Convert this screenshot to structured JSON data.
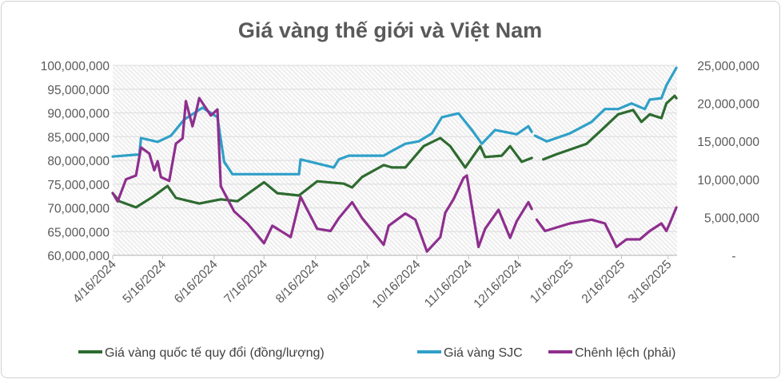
{
  "chart_data": {
    "type": "line",
    "title": "Giá vàng thế giới và Việt Nam",
    "y_left": {
      "ticks": [
        "60,000,000",
        "65,000,000",
        "70,000,000",
        "75,000,000",
        "80,000,000",
        "85,000,000",
        "90,000,000",
        "95,000,000",
        "100,000,000"
      ],
      "range": [
        60000000,
        100000000
      ]
    },
    "y_right": {
      "ticks": [
        "-",
        "5,000,000",
        "10,000,000",
        "15,000,000",
        "20,000,000",
        "25,000,000"
      ],
      "range": [
        0,
        25000000
      ]
    },
    "x_ticks": [
      {
        "date": "2024-04-16",
        "label": "4/16/2024"
      },
      {
        "date": "2024-05-16",
        "label": "5/16/2024"
      },
      {
        "date": "2024-06-16",
        "label": "6/16/2024"
      },
      {
        "date": "2024-07-16",
        "label": "7/16/2024"
      },
      {
        "date": "2024-08-16",
        "label": "8/16/2024"
      },
      {
        "date": "2024-09-16",
        "label": "9/16/2024"
      },
      {
        "date": "2024-10-16",
        "label": "10/16/2024"
      },
      {
        "date": "2024-11-16",
        "label": "11/16/2024"
      },
      {
        "date": "2024-12-16",
        "label": "12/16/2024"
      },
      {
        "date": "2025-01-16",
        "label": "1/16/2025"
      },
      {
        "date": "2025-02-16",
        "label": "2/16/2025"
      },
      {
        "date": "2025-03-16",
        "label": "3/16/2025"
      }
    ],
    "grid": true,
    "legend_position": "bottom",
    "series": [
      {
        "name": "Giá vàng quốc tế quy đổi (đồng/lượng)",
        "axis": "left",
        "color": "#2e6b30",
        "points": [
          [
            "2024-04-16",
            73100000
          ],
          [
            "2024-04-20",
            71400000
          ],
          [
            "2024-04-30",
            70100000
          ],
          [
            "2024-05-10",
            72300000
          ],
          [
            "2024-05-19",
            74600000
          ],
          [
            "2024-05-24",
            72100000
          ],
          [
            "2024-06-07",
            70900000
          ],
          [
            "2024-06-20",
            71800000
          ],
          [
            "2024-06-30",
            71400000
          ],
          [
            "2024-07-16",
            75400000
          ],
          [
            "2024-07-24",
            73100000
          ],
          [
            "2024-08-06",
            72600000
          ],
          [
            "2024-08-17",
            75600000
          ],
          [
            "2024-09-02",
            75100000
          ],
          [
            "2024-09-07",
            74300000
          ],
          [
            "2024-09-13",
            76500000
          ],
          [
            "2024-09-26",
            79000000
          ],
          [
            "2024-10-01",
            78500000
          ],
          [
            "2024-10-09",
            78500000
          ],
          [
            "2024-10-20",
            83000000
          ],
          [
            "2024-10-30",
            84700000
          ],
          [
            "2024-11-05",
            83000000
          ],
          [
            "2024-11-14",
            78500000
          ],
          [
            "2024-11-23",
            83000000
          ],
          [
            "2024-11-26",
            80700000
          ],
          [
            "2024-12-06",
            81000000
          ],
          [
            "2024-12-11",
            83000000
          ],
          [
            "2024-12-18",
            79700000
          ],
          [
            "2024-12-24",
            80500000
          ],
          [
            "2024-12-25",
            null
          ],
          [
            "2024-12-31",
            80200000
          ],
          [
            "2025-01-08",
            81300000
          ],
          [
            "2025-01-26",
            83500000
          ],
          [
            "2025-02-04",
            86400000
          ],
          [
            "2025-02-14",
            89700000
          ],
          [
            "2025-02-23",
            90600000
          ],
          [
            "2025-02-28",
            88100000
          ],
          [
            "2025-03-05",
            89700000
          ],
          [
            "2025-03-12",
            88900000
          ],
          [
            "2025-03-15",
            92000000
          ],
          [
            "2025-03-20",
            93600000
          ],
          [
            "2025-03-21",
            93100000
          ]
        ]
      },
      {
        "name": "Giá vàng SJC",
        "axis": "left",
        "color": "#2fa0c8",
        "points": [
          [
            "2024-04-16",
            80800000
          ],
          [
            "2024-04-30",
            81200000
          ],
          [
            "2024-05-02",
            81200000
          ],
          [
            "2024-05-03",
            84700000
          ],
          [
            "2024-05-13",
            83900000
          ],
          [
            "2024-05-21",
            85200000
          ],
          [
            "2024-05-29",
            88600000
          ],
          [
            "2024-06-09",
            91100000
          ],
          [
            "2024-06-18",
            89100000
          ],
          [
            "2024-06-22",
            79700000
          ],
          [
            "2024-06-27",
            77100000
          ],
          [
            "2024-08-06",
            77100000
          ],
          [
            "2024-08-07",
            80200000
          ],
          [
            "2024-08-27",
            78500000
          ],
          [
            "2024-08-30",
            80200000
          ],
          [
            "2024-09-05",
            81000000
          ],
          [
            "2024-09-26",
            81000000
          ],
          [
            "2024-10-01",
            82000000
          ],
          [
            "2024-10-09",
            83500000
          ],
          [
            "2024-10-17",
            84000000
          ],
          [
            "2024-10-25",
            85700000
          ],
          [
            "2024-10-31",
            89100000
          ],
          [
            "2024-11-10",
            89900000
          ],
          [
            "2024-11-18",
            86400000
          ],
          [
            "2024-11-24",
            83500000
          ],
          [
            "2024-12-02",
            86400000
          ],
          [
            "2024-12-15",
            85500000
          ],
          [
            "2024-12-22",
            87200000
          ],
          [
            "2024-12-24",
            86000000
          ],
          [
            "2024-12-25",
            null
          ],
          [
            "2024-12-26",
            85200000
          ],
          [
            "2025-01-02",
            84000000
          ],
          [
            "2025-01-16",
            85700000
          ],
          [
            "2025-01-29",
            88100000
          ],
          [
            "2025-02-06",
            90800000
          ],
          [
            "2025-02-14",
            90800000
          ],
          [
            "2025-02-22",
            92000000
          ],
          [
            "2025-03-02",
            90800000
          ],
          [
            "2025-03-05",
            92800000
          ],
          [
            "2025-03-12",
            93100000
          ],
          [
            "2025-03-15",
            95800000
          ],
          [
            "2025-03-21",
            99500000
          ]
        ]
      },
      {
        "name": "Chênh lệch (phải)",
        "axis": "right",
        "color": "#8e2f8e",
        "points": [
          [
            "2024-04-16",
            8200000
          ],
          [
            "2024-04-19",
            7100000
          ],
          [
            "2024-04-24",
            10000000
          ],
          [
            "2024-04-30",
            10500000
          ],
          [
            "2024-05-03",
            14200000
          ],
          [
            "2024-05-08",
            13400000
          ],
          [
            "2024-05-11",
            11200000
          ],
          [
            "2024-05-13",
            12400000
          ],
          [
            "2024-05-15",
            10300000
          ],
          [
            "2024-05-20",
            9800000
          ],
          [
            "2024-05-24",
            14700000
          ],
          [
            "2024-05-28",
            15400000
          ],
          [
            "2024-05-30",
            20300000
          ],
          [
            "2024-06-03",
            17000000
          ],
          [
            "2024-06-05",
            18700000
          ],
          [
            "2024-06-07",
            20700000
          ],
          [
            "2024-06-14",
            18400000
          ],
          [
            "2024-06-18",
            19200000
          ],
          [
            "2024-06-20",
            9100000
          ],
          [
            "2024-06-28",
            5800000
          ],
          [
            "2024-07-06",
            4200000
          ],
          [
            "2024-07-16",
            1600000
          ],
          [
            "2024-07-21",
            3900000
          ],
          [
            "2024-08-01",
            2400000
          ],
          [
            "2024-08-07",
            7700000
          ],
          [
            "2024-08-17",
            3500000
          ],
          [
            "2024-08-25",
            3200000
          ],
          [
            "2024-08-30",
            4900000
          ],
          [
            "2024-09-07",
            7000000
          ],
          [
            "2024-09-13",
            4900000
          ],
          [
            "2024-09-26",
            1400000
          ],
          [
            "2024-09-29",
            3900000
          ],
          [
            "2024-10-09",
            5500000
          ],
          [
            "2024-10-15",
            4700000
          ],
          [
            "2024-10-22",
            500000
          ],
          [
            "2024-10-30",
            2400000
          ],
          [
            "2024-11-02",
            5600000
          ],
          [
            "2024-11-07",
            7400000
          ],
          [
            "2024-11-13",
            10200000
          ],
          [
            "2024-11-15",
            10500000
          ],
          [
            "2024-11-22",
            1100000
          ],
          [
            "2024-11-26",
            3500000
          ],
          [
            "2024-12-04",
            6000000
          ],
          [
            "2024-12-11",
            2300000
          ],
          [
            "2024-12-15",
            4500000
          ],
          [
            "2024-12-22",
            7000000
          ],
          [
            "2024-12-24",
            6100000
          ],
          [
            "2024-12-25",
            null
          ],
          [
            "2024-12-27",
            4700000
          ],
          [
            "2025-01-01",
            3200000
          ],
          [
            "2025-01-16",
            4200000
          ],
          [
            "2025-01-29",
            4700000
          ],
          [
            "2025-02-06",
            4200000
          ],
          [
            "2025-02-13",
            1100000
          ],
          [
            "2025-02-19",
            2100000
          ],
          [
            "2025-02-27",
            2100000
          ],
          [
            "2025-03-05",
            3200000
          ],
          [
            "2025-03-12",
            4200000
          ],
          [
            "2025-03-15",
            3200000
          ],
          [
            "2025-03-17",
            4200000
          ],
          [
            "2025-03-21",
            6300000
          ]
        ]
      }
    ]
  }
}
